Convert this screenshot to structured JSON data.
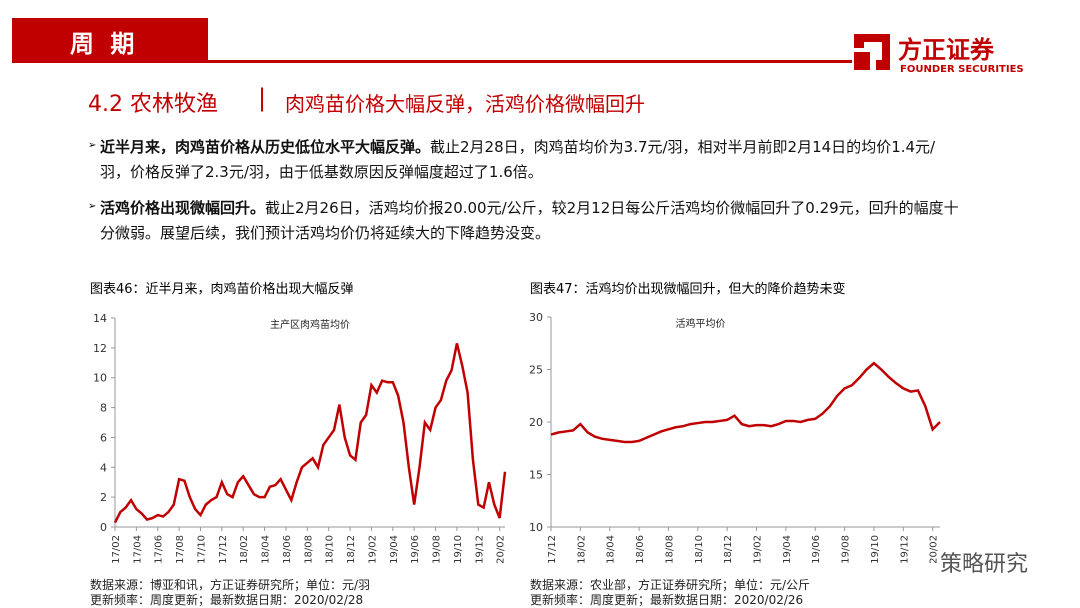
{
  "header": {
    "section": "周 期",
    "logo_cn": "方正证券",
    "logo_en": "FOUNDER SECURITIES"
  },
  "title": {
    "number": "4.2 农林牧渔",
    "text": "肉鸡苗价格大幅反弹，活鸡价格微幅回升"
  },
  "bullets": [
    {
      "bold": "近半月来，肉鸡苗价格从历史低位水平大幅反弹。",
      "text": "截止2月28日，肉鸡苗均价为3.7元/羽，相对半月前即2月14日的均价1.4元/羽，价格反弹了2.3元/羽，由于低基数原因反弹幅度超过了1.6倍。"
    },
    {
      "bold": "活鸡价格出现微幅回升。",
      "text": "截止2月26日，活鸡均价报20.00元/公斤，较2月12日每公斤活鸡均价微幅回升了0.29元，回升的幅度十分微弱。展望后续，我们预计活鸡均价仍将延续大的下降趋势没变。"
    }
  ],
  "watermark": "策略研究",
  "chart_data": [
    {
      "type": "line",
      "caption": "图表46：近半月来，肉鸡苗价格出现大幅反弹",
      "categories": [
        "17/02",
        null,
        null,
        null,
        "17/04",
        null,
        null,
        null,
        "17/06",
        null,
        null,
        null,
        "17/08",
        null,
        null,
        null,
        "17/10",
        null,
        null,
        null,
        "17/12",
        null,
        null,
        null,
        "18/02",
        null,
        null,
        null,
        "18/04",
        null,
        null,
        null,
        "18/06",
        null,
        null,
        null,
        "18/08",
        null,
        null,
        null,
        "18/10",
        null,
        null,
        null,
        "18/12",
        null,
        null,
        null,
        "19/02",
        null,
        null,
        null,
        "19/04",
        null,
        null,
        null,
        "19/06",
        null,
        null,
        null,
        "19/08",
        null,
        null,
        null,
        "19/10",
        null,
        null,
        null,
        "19/12",
        null,
        null,
        null,
        "20/02",
        null
      ],
      "series": [
        {
          "name": "主产区肉鸡苗均价",
          "color": "#c00000",
          "values": [
            0.3,
            1.0,
            1.3,
            1.8,
            1.2,
            0.9,
            0.5,
            0.6,
            0.8,
            0.7,
            1.0,
            1.5,
            3.2,
            3.1,
            2.0,
            1.2,
            0.8,
            1.5,
            1.8,
            2.0,
            3.0,
            2.2,
            2.0,
            3.0,
            3.4,
            2.8,
            2.2,
            2.0,
            2.0,
            2.7,
            2.8,
            3.2,
            2.5,
            1.8,
            3.0,
            4.0,
            4.3,
            4.6,
            4.0,
            5.5,
            6.0,
            6.5,
            8.2,
            6.0,
            4.8,
            4.5,
            7.0,
            7.5,
            9.5,
            9.0,
            9.8,
            9.7,
            9.7,
            8.8,
            7.0,
            4.0,
            1.5,
            4.0,
            7.0,
            6.5,
            8.0,
            8.5,
            9.8,
            10.5,
            12.3,
            10.8,
            9.0,
            4.5,
            1.5,
            1.3,
            3.0,
            1.5,
            0.6,
            3.7
          ]
        }
      ],
      "ylim": [
        0,
        14
      ],
      "yticks": [
        0,
        2,
        4,
        6,
        8,
        10,
        12,
        14
      ],
      "source": "数据来源：博亚和讯，方正证券研究所；单位：元/羽",
      "update": "更新频率：周度更新；最新数据日期：2020/02/28"
    },
    {
      "type": "line",
      "caption": "图表47：活鸡均价出现微幅回升，但大的降价趋势未变",
      "categories": [
        "17/12",
        null,
        null,
        null,
        "18/02",
        null,
        null,
        null,
        "18/04",
        null,
        null,
        null,
        "18/06",
        null,
        null,
        null,
        "18/08",
        null,
        null,
        null,
        "18/10",
        null,
        null,
        null,
        "18/12",
        null,
        null,
        null,
        "19/02",
        null,
        null,
        null,
        "19/04",
        null,
        null,
        null,
        "19/06",
        null,
        null,
        null,
        "19/08",
        null,
        null,
        null,
        "19/10",
        null,
        null,
        null,
        "19/12",
        null,
        null,
        null,
        "20/02",
        null
      ],
      "series": [
        {
          "name": "活鸡平均价",
          "color": "#c00000",
          "values": [
            18.8,
            19.0,
            19.1,
            19.2,
            19.8,
            19.0,
            18.6,
            18.4,
            18.3,
            18.2,
            18.1,
            18.1,
            18.2,
            18.5,
            18.8,
            19.1,
            19.3,
            19.5,
            19.6,
            19.8,
            19.9,
            20.0,
            20.0,
            20.1,
            20.2,
            20.6,
            19.8,
            19.6,
            19.7,
            19.7,
            19.6,
            19.8,
            20.1,
            20.1,
            20.0,
            20.2,
            20.3,
            20.8,
            21.5,
            22.5,
            23.2,
            23.5,
            24.2,
            25.0,
            25.6,
            25.0,
            24.3,
            23.7,
            23.2,
            22.9,
            23.0,
            21.5,
            19.3,
            20.0
          ]
        }
      ],
      "ylim": [
        10,
        30
      ],
      "yticks": [
        10,
        15,
        20,
        25,
        30
      ],
      "source": "数据来源：农业部，方正证券研究所；单位：元/公斤",
      "update": "更新频率：周度更新；最新数据日期：2020/02/26"
    }
  ]
}
